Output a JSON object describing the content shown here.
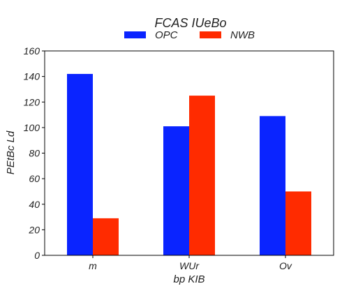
{
  "chart_data": {
    "type": "bar",
    "title": "FCAS IUeBo",
    "xlabel": "bp KIB",
    "ylabel": "PEtBc Ld",
    "categories": [
      "m",
      "WUr",
      "Ov"
    ],
    "series": [
      {
        "name": "OPC",
        "color": "#0a24ff",
        "values": [
          142,
          101,
          109
        ]
      },
      {
        "name": "NWB",
        "color": "#ff2b00",
        "values": [
          29,
          125,
          50
        ]
      }
    ],
    "ylim": [
      0,
      160
    ],
    "yticks": [
      0,
      20,
      40,
      60,
      80,
      100,
      120,
      140,
      160
    ],
    "grid": false,
    "legend_position": "top-center"
  }
}
